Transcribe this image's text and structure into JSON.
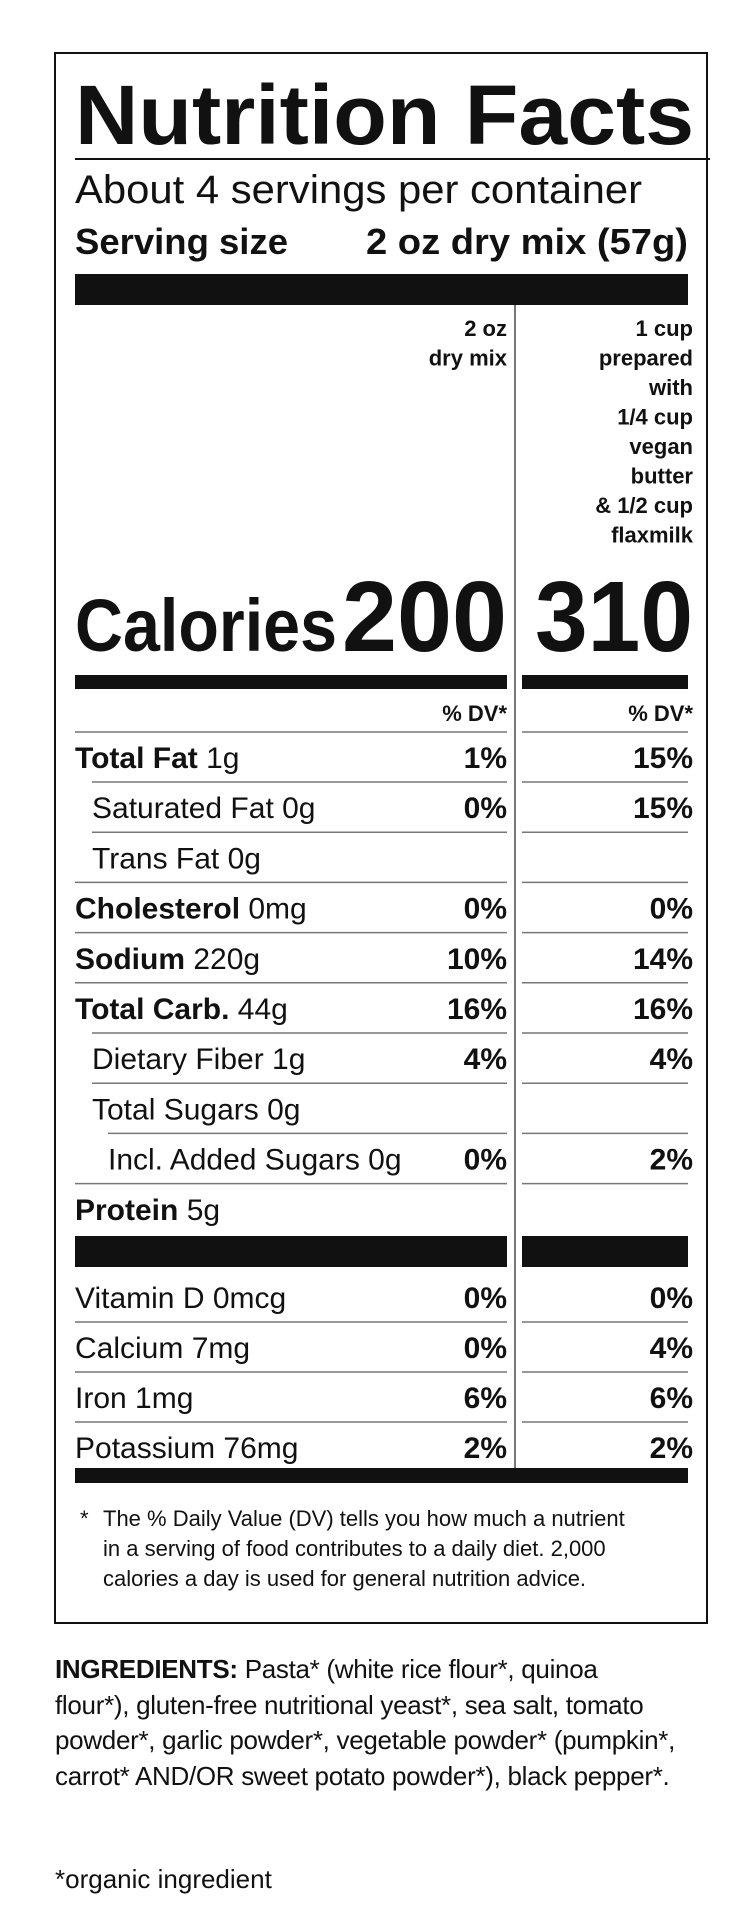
{
  "title": "Nutrition Facts",
  "servings": "About 4 servings per container",
  "serving_size": {
    "label": "Serving size",
    "value": "2 oz dry mix (57g)"
  },
  "columns": [
    {
      "header": [
        "2 oz",
        "dry mix"
      ],
      "calories": "200"
    },
    {
      "header": [
        "1 cup",
        "prepared",
        "with",
        "1/4 cup",
        "vegan",
        "butter",
        "& 1/2 cup",
        "flaxmilk"
      ],
      "calories": "310"
    }
  ],
  "calories_label": "Calories",
  "dv_header": "% DV*",
  "rows": [
    {
      "nutrient": "Total Fat",
      "amount": "1g",
      "level": 0,
      "dv": [
        "1%",
        "15%"
      ]
    },
    {
      "nutrient": "Saturated Fat 0g",
      "level": 1,
      "dv": [
        "0%",
        "15%"
      ]
    },
    {
      "nutrient": "Trans Fat 0g",
      "level": 1
    },
    {
      "nutrient": "Cholesterol",
      "amount": "0mg",
      "level": 0,
      "dv": [
        "0%",
        "0%"
      ]
    },
    {
      "nutrient": "Sodium",
      "amount": "220g",
      "level": 0,
      "dv": [
        "10%",
        "14%"
      ]
    },
    {
      "nutrient": "Total Carb.",
      "amount": "44g",
      "level": 0,
      "dv": [
        "16%",
        "16%"
      ]
    },
    {
      "nutrient": "Dietary Fiber 1g",
      "level": 1,
      "dv": [
        "4%",
        "4%"
      ]
    },
    {
      "nutrient": "Total Sugars 0g",
      "level": 1
    },
    {
      "nutrient": "Incl. Added Sugars 0g",
      "level": 2,
      "dv": [
        "0%",
        "2%"
      ]
    },
    {
      "nutrient": "Protein",
      "amount": "5g",
      "level": 0
    }
  ],
  "vitamins": [
    {
      "nutrient": "Vitamin D 0mcg",
      "dv": [
        "0%",
        "0%"
      ]
    },
    {
      "nutrient": "Calcium 7mg",
      "dv": [
        "0%",
        "4%"
      ]
    },
    {
      "nutrient": "Iron 1mg",
      "dv": [
        "6%",
        "6%"
      ]
    },
    {
      "nutrient": "Potassium 76mg",
      "dv": [
        "2%",
        "2%"
      ]
    }
  ],
  "footnote": {
    "mark": "*",
    "lines": [
      "The % Daily Value (DV) tells you how much a nutrient",
      "in a serving of food contributes to a daily diet. 2,000",
      "calories a day is used for general nutrition advice."
    ]
  },
  "ingredients": {
    "label": "INGREDIENTS:",
    "text": "Pasta* (white rice flour*, quinoa flour*), gluten-free nutritional yeast*, sea salt, tomato powder*, garlic powder*, vegetable powder* (pumpkin*, carrot* AND/OR sweet potato powder*), black pepper*."
  },
  "organic_note": "*organic ingredient"
}
